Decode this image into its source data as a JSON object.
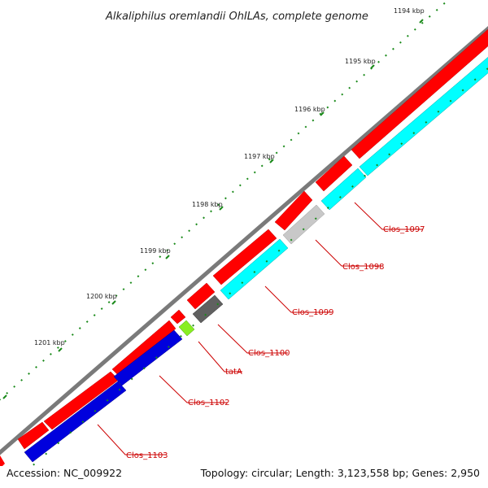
{
  "title": "Alkaliphilus oremlandii OhILAs, complete genome",
  "footer": {
    "accession": "Accession: NC_009922",
    "summary": "Topology: circular; Length: 3,123,558 bp; Genes: 2,950"
  },
  "kbp_labels": [
    "1194 kbp",
    "1195 kbp",
    "1196 kbp",
    "1197 kbp",
    "1198 kbp",
    "1199 kbp",
    "1200 kbp",
    "1201 kbp"
  ],
  "gene_labels": [
    "Clos_1097",
    "Clos_1098",
    "Clos_1099",
    "Clos_1100",
    "tatA",
    "Clos_1102",
    "Clos_1103"
  ],
  "colors": {
    "forward_cds": "#ff0000",
    "reverse_cyan": "#00ffff",
    "reverse_blue": "#0000dd",
    "gray_dark": "#606060",
    "gray_light": "#c8c8c8",
    "lime": "#88ee22",
    "backbone": "#7a7a7a",
    "tick": "#1a8a1a",
    "label": "#cc0000"
  }
}
